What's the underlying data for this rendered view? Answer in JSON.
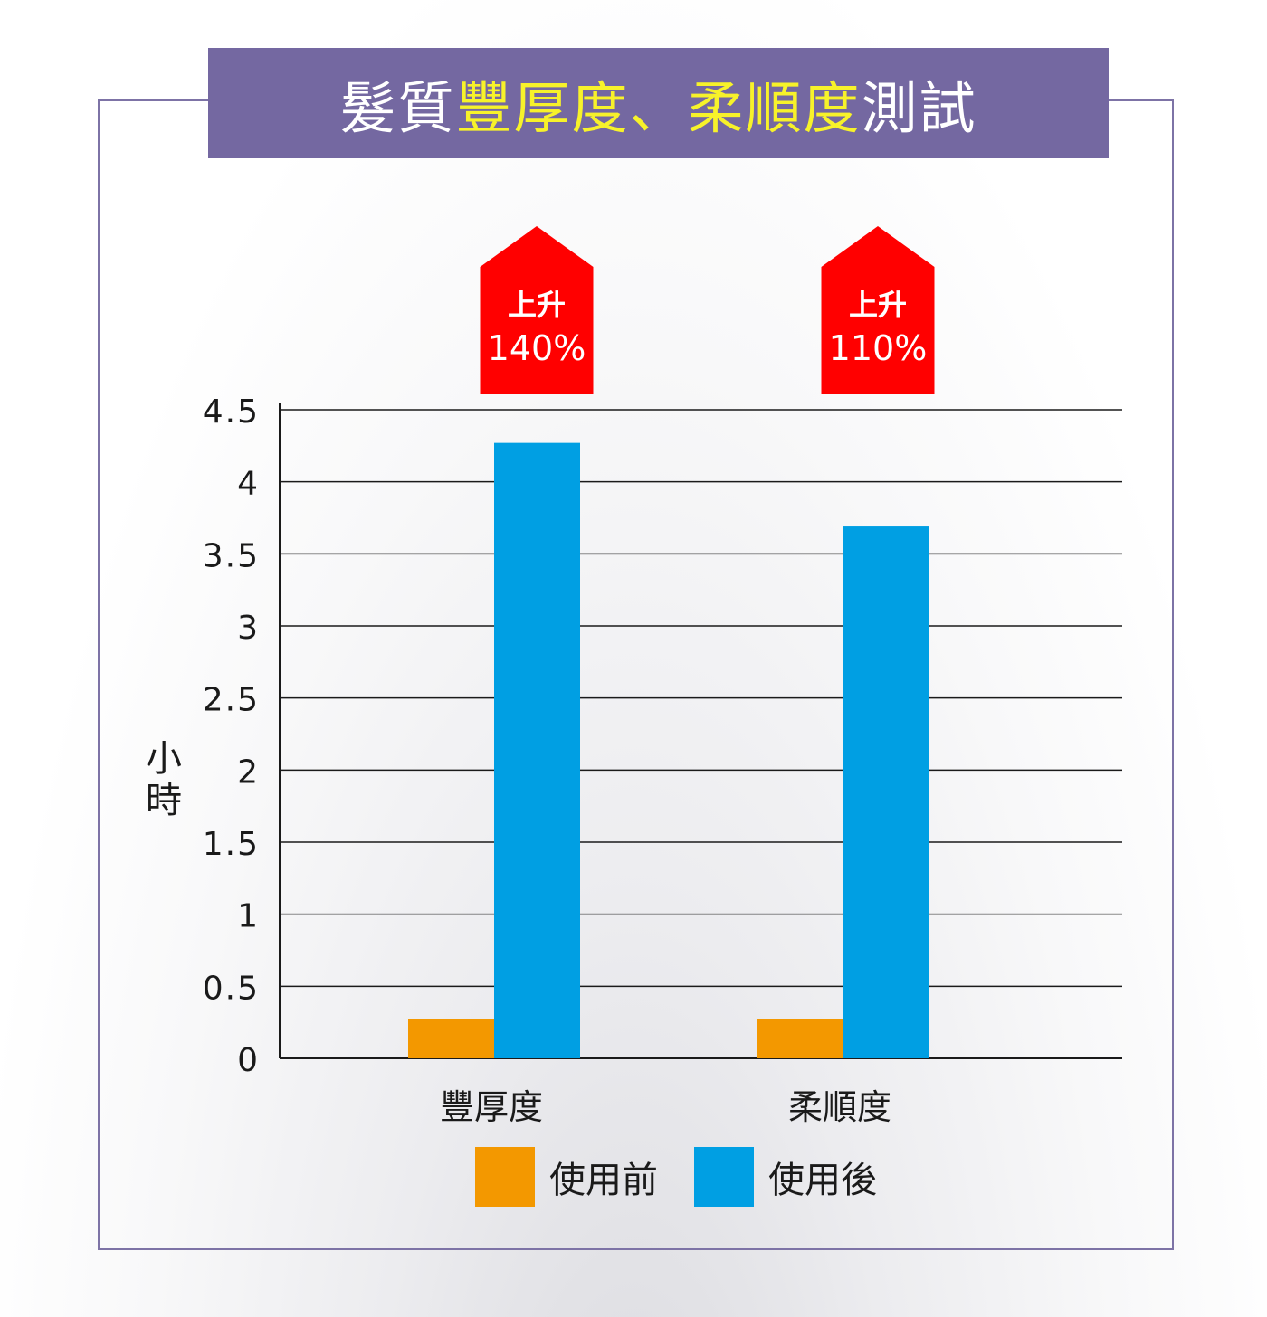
{
  "title": {
    "part1": "髮質",
    "part2": "豐厚度、柔順度",
    "part3": "測試"
  },
  "chart_data": {
    "type": "bar",
    "categories": [
      "豐厚度",
      "柔順度"
    ],
    "series": [
      {
        "name": "使用前",
        "values": [
          0.27,
          0.27
        ],
        "color": "#f39800"
      },
      {
        "name": "使用後",
        "values": [
          4.27,
          3.69
        ],
        "color": "#009fe3"
      }
    ],
    "ylabel": "小時",
    "ylim": [
      0,
      4.5
    ],
    "yticks": [
      "0",
      "0.5",
      "1",
      "1.5",
      "2",
      "2.5",
      "3",
      "3.5",
      "4",
      "4.5"
    ],
    "grid": true,
    "legend_position": "bottom",
    "annotations": [
      {
        "category": "豐厚度",
        "line1": "上升",
        "line2": "140%"
      },
      {
        "category": "柔順度",
        "line1": "上升",
        "line2": "110%"
      }
    ],
    "annotation_color": "#ff0000"
  }
}
